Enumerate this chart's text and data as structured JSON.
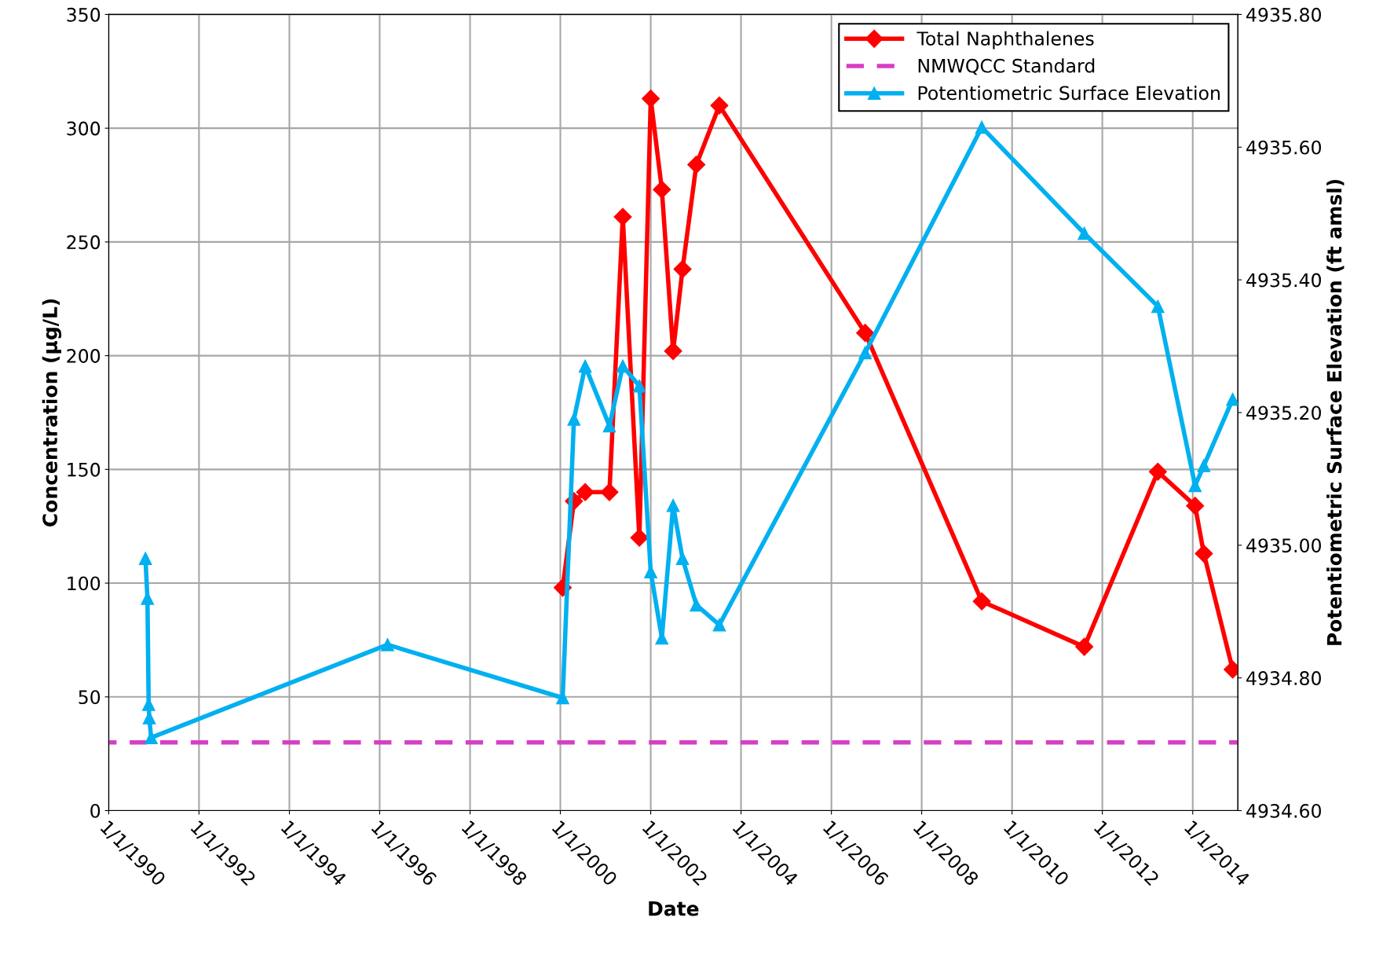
{
  "chart_data": {
    "type": "line",
    "xlabel": "Date",
    "ylabel": "Concentration (µg/L)",
    "y2label": "Potentiometric Surface Elevation (ft amsl)",
    "xlim": [
      "1990-01-01",
      "2015-01-01"
    ],
    "xticks": [
      {
        "value": "1990-01-01",
        "label": "1/1/1990"
      },
      {
        "value": "1992-01-01",
        "label": "1/1/1992"
      },
      {
        "value": "1994-01-01",
        "label": "1/1/1994"
      },
      {
        "value": "1996-01-01",
        "label": "1/1/1996"
      },
      {
        "value": "1998-01-01",
        "label": "1/1/1998"
      },
      {
        "value": "2000-01-01",
        "label": "1/1/2000"
      },
      {
        "value": "2002-01-01",
        "label": "1/1/2002"
      },
      {
        "value": "2004-01-01",
        "label": "1/1/2004"
      },
      {
        "value": "2006-01-01",
        "label": "1/1/2006"
      },
      {
        "value": "2008-01-01",
        "label": "1/1/2008"
      },
      {
        "value": "2010-01-01",
        "label": "1/1/2010"
      },
      {
        "value": "2012-01-01",
        "label": "1/1/2012"
      },
      {
        "value": "2014-01-01",
        "label": "1/1/2014"
      }
    ],
    "ylim": [
      0,
      350
    ],
    "yticks": [
      0,
      50,
      100,
      150,
      200,
      250,
      300,
      350
    ],
    "y2lim": [
      4934.6,
      4935.8
    ],
    "y2ticks": [
      {
        "value": 4934.6,
        "label": "4934.60"
      },
      {
        "value": 4934.8,
        "label": "4934.80"
      },
      {
        "value": 4935.0,
        "label": "4935.00"
      },
      {
        "value": 4935.2,
        "label": "4935.20"
      },
      {
        "value": 4935.4,
        "label": "4935.40"
      },
      {
        "value": 4935.6,
        "label": "4935.60"
      },
      {
        "value": 4935.8,
        "label": "4935.80"
      }
    ],
    "grid": true,
    "legend": "top right",
    "series": [
      {
        "name": "Total Naphthalenes",
        "color": "#ff0000",
        "marker": "diamond",
        "line_style": "solid",
        "x": [
          "2000-01-20",
          "2000-04-20",
          "2000-07-20",
          "2001-02-01",
          "2001-05-20",
          "2001-10-01",
          "2002-01-01",
          "2002-04-01",
          "2002-07-01",
          "2002-09-15",
          "2003-01-05",
          "2003-07-10",
          "2006-10-01",
          "2009-05-01",
          "2011-08-08",
          "2013-03-25",
          "2014-01-20",
          "2014-04-01",
          "2014-11-20"
        ],
        "values": [
          98,
          136,
          140,
          140,
          261,
          120,
          313,
          273,
          202,
          238,
          284,
          310,
          210,
          92,
          72,
          149,
          134,
          113,
          62
        ]
      },
      {
        "name": "NMWQCC Standard",
        "color": "#d63fc4",
        "marker": "none",
        "line_style": "dashed",
        "x": [
          "1990-01-01",
          "2015-01-01"
        ],
        "values": [
          30,
          30
        ]
      },
      {
        "name": "Potentiometric Surface Elevation",
        "color": "#00b0f0",
        "marker": "triangle",
        "line_style": "solid",
        "axis": "y2",
        "x": [
          "1990-10-25",
          "1990-11-10",
          "1990-11-20",
          "1990-11-25",
          "1990-12-10",
          "1996-03-05",
          "2000-01-20",
          "2000-04-20",
          "2000-07-20",
          "2001-02-01",
          "2001-05-20",
          "2001-10-01",
          "2002-01-01",
          "2002-04-01",
          "2002-07-01",
          "2002-09-15",
          "2003-01-05",
          "2003-07-10",
          "2006-10-01",
          "2009-05-01",
          "2011-08-08",
          "2013-03-25",
          "2014-01-20",
          "2014-04-01",
          "2014-11-20"
        ],
        "values": [
          4934.98,
          4934.92,
          4934.76,
          4934.74,
          4934.71,
          4934.85,
          4934.77,
          4935.19,
          4935.27,
          4935.18,
          4935.27,
          4935.24,
          4934.96,
          4934.86,
          4935.06,
          4934.98,
          4934.91,
          4934.88,
          4935.29,
          4935.63,
          4935.47,
          4935.36,
          4935.09,
          4935.12,
          4935.22
        ]
      }
    ]
  }
}
